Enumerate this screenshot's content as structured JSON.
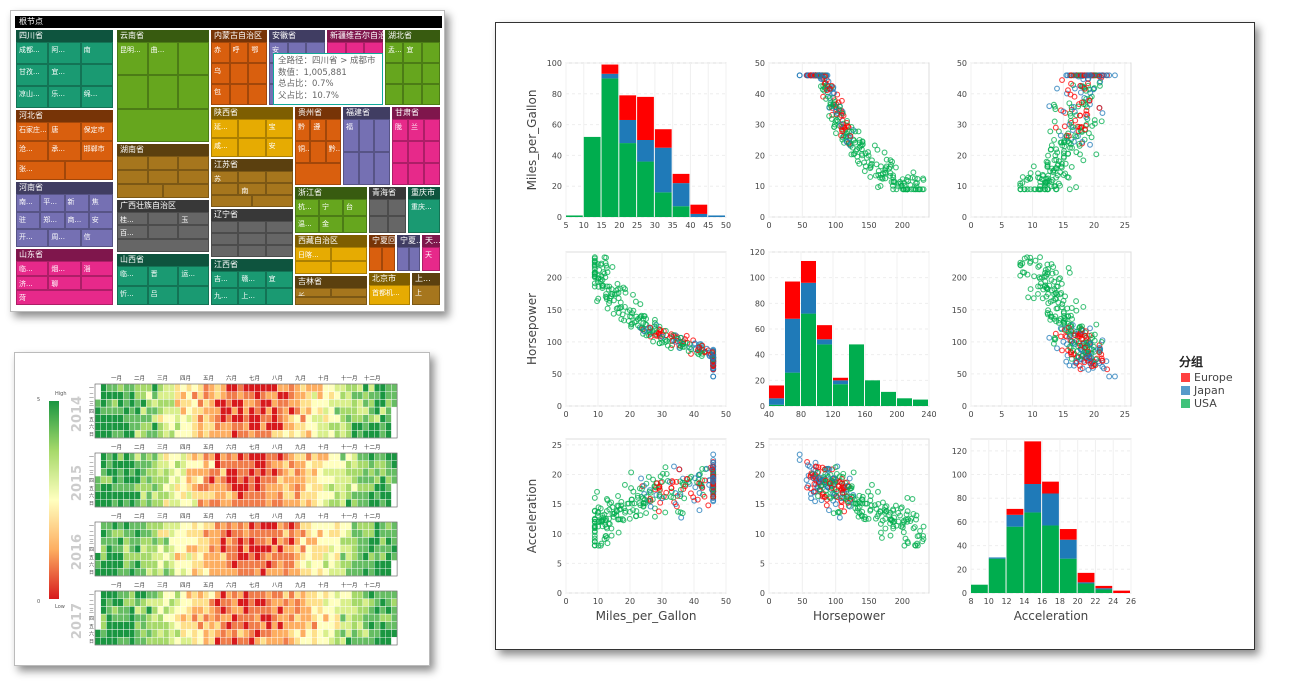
{
  "treemap": {
    "root": "根节点",
    "tooltip": {
      "path": "全路径：四川省 > 成都市",
      "value": "数值：1,005,881",
      "total_ratio": "总占比：0.7%",
      "parent_ratio": "父占比：10.7%"
    },
    "provinces": [
      {
        "name": "四川省",
        "color": "#1a9a72",
        "cells": [
          "成都...",
          "阿...",
          "南",
          "甘孜...",
          "宜...",
          "",
          "凉山...",
          "乐...",
          "绵..."
        ]
      },
      {
        "name": "河北省",
        "color": "#d95f0e",
        "cells": [
          "石家庄...",
          "唐",
          "保定市",
          "沧...",
          "承...",
          "邯郸市",
          "张...",
          ""
        ]
      },
      {
        "name": "河南省",
        "color": "#7570b3",
        "cells": [
          "南...",
          "平...",
          "新",
          "焦",
          "驻",
          "郑...",
          "商...",
          "安",
          "开...",
          "周...",
          "信"
        ]
      },
      {
        "name": "山东省",
        "color": "#e7298a",
        "cells": [
          "临...",
          "烟...",
          "淄",
          "济...",
          "聊",
          "",
          "菏"
        ]
      },
      {
        "name": "云南省",
        "color": "#66a61e",
        "cells": [
          "昆明...",
          "曲...",
          "",
          "",
          "",
          "",
          ""
        ]
      },
      {
        "name": "湖南省",
        "color": "#a6761d",
        "cells": [
          "",
          "",
          "",
          "",
          "",
          "",
          "",
          ""
        ]
      },
      {
        "name": "广西壮族自治区",
        "color": "#666666",
        "cells": [
          "桂...",
          "",
          "玉",
          "百...",
          "",
          "",
          ""
        ]
      },
      {
        "name": "山西省",
        "color": "#1a9a72",
        "cells": [
          "临...",
          "晋",
          "运...",
          "忻...",
          "吕",
          ""
        ]
      },
      {
        "name": "内蒙古自治区",
        "color": "#d95f0e",
        "cells": [
          "赤",
          "呼",
          "鄂",
          "乌",
          "",
          "",
          "包",
          "",
          ""
        ]
      },
      {
        "name": "陕西省",
        "color": "#e6ab02",
        "cells": [
          "延...",
          "",
          "宝",
          "咸...",
          "",
          "安"
        ]
      },
      {
        "name": "江苏省",
        "color": "#a6761d",
        "cells": [
          "苏",
          "",
          "",
          "",
          "南",
          "",
          "",
          ""
        ]
      },
      {
        "name": "辽宁省",
        "color": "#666666",
        "cells": [
          "",
          "",
          "",
          "",
          "",
          "",
          "",
          "",
          ""
        ]
      },
      {
        "name": "江西省",
        "color": "#1a9a72",
        "cells": [
          "吉...",
          "赣...",
          "宜",
          "九...",
          "上...",
          ""
        ]
      },
      {
        "name": "安徽省",
        "color": "#7570b3",
        "cells": [
          "安",
          "",
          "",
          "",
          "",
          "",
          "",
          "",
          ""
        ]
      },
      {
        "name": "新疆维吾尔自治区",
        "color": "#e7298a",
        "cells": [
          "",
          "",
          "",
          "",
          "",
          "",
          "",
          "",
          ""
        ]
      },
      {
        "name": "湖北省",
        "color": "#66a61e",
        "cells": [
          "孟...",
          "宜",
          "",
          "",
          "",
          "",
          "",
          "",
          ""
        ]
      },
      {
        "name": "贵州省",
        "color": "#d95f0e",
        "cells": [
          "黔",
          "遵",
          "",
          "铜...",
          "",
          "黔...",
          ""
        ]
      },
      {
        "name": "福建省",
        "color": "#7570b3",
        "cells": [
          "福",
          "",
          "",
          "",
          "",
          ""
        ]
      },
      {
        "name": "甘肃省",
        "color": "#e7298a",
        "cells": [
          "陇",
          "兰",
          "",
          "",
          "",
          "",
          "",
          "",
          ""
        ]
      },
      {
        "name": "浙江省",
        "color": "#66a61e",
        "cells": [
          "杭...",
          "宁",
          "台",
          "温...",
          "金",
          ""
        ]
      },
      {
        "name": "青海省",
        "color": "#666666",
        "cells": [
          "",
          "",
          "",
          ""
        ]
      },
      {
        "name": "重庆市",
        "color": "#1a9a72",
        "cells": [
          "重庆..."
        ]
      },
      {
        "name": "西藏自治区",
        "color": "#e6ab02",
        "cells": [
          "日喀...",
          "",
          "",
          ""
        ]
      },
      {
        "name": "吉林省",
        "color": "#a6761d",
        "cells": [
          "长",
          "",
          ""
        ]
      },
      {
        "name": "宁夏回族自治区",
        "color": "#d95f0e",
        "cells": [
          "",
          ""
        ]
      },
      {
        "name": "宁夏...",
        "color": "#7570b3",
        "cells": [
          "",
          ""
        ]
      },
      {
        "name": "天...",
        "color": "#e7298a",
        "cells": [
          "天"
        ]
      },
      {
        "name": "北京市",
        "color": "#e6ab02",
        "cells": [
          "首都机..."
        ]
      },
      {
        "name": "上...",
        "color": "#a6761d",
        "cells": [
          "上"
        ]
      }
    ]
  },
  "calendar": {
    "years": [
      "2014",
      "2015",
      "2016",
      "2017"
    ],
    "months": [
      "一月",
      "二月",
      "三月",
      "四月",
      "五月",
      "六月",
      "七月",
      "八月",
      "九月",
      "十月",
      "十一月",
      "十二月"
    ],
    "weekdays": [
      "一",
      "二",
      "三",
      "四",
      "五",
      "六",
      "日"
    ],
    "legend": {
      "high": "High",
      "low": "Low",
      "max": "5",
      "min": "0"
    },
    "colors": [
      "#d7191c",
      "#fdae61",
      "#ffffbf",
      "#a6d96a",
      "#1a9641"
    ]
  },
  "chart_data": {
    "type": "scatter-matrix",
    "variables": [
      "Miles_per_Gallon",
      "Horsepower",
      "Acceleration"
    ],
    "legend": {
      "title": "分组",
      "placement": "right",
      "entries": [
        {
          "name": "Europe",
          "color": "#ff0000"
        },
        {
          "name": "Japan",
          "color": "#1f7ab8"
        },
        {
          "name": "USA",
          "color": "#00ad4e"
        }
      ]
    },
    "histograms": [
      {
        "variable": "Miles_per_Gallon",
        "bins": [
          5,
          10,
          15,
          20,
          25,
          30,
          35,
          40,
          45,
          50
        ],
        "ylim": [
          0,
          100
        ],
        "yticks": [
          0,
          20,
          40,
          60,
          80,
          100
        ],
        "series": [
          {
            "name": "USA",
            "values": [
              1,
              52,
              90,
              48,
              36,
              16,
              7,
              0,
              0
            ]
          },
          {
            "name": "Japan",
            "values": [
              0,
              0,
              3,
              15,
              14,
              29,
              15,
              2,
              1
            ]
          },
          {
            "name": "Europe",
            "values": [
              0,
              0,
              6,
              16,
              28,
              12,
              6,
              6,
              0
            ]
          }
        ]
      },
      {
        "variable": "Horsepower",
        "bins": [
          40,
          60,
          80,
          100,
          120,
          140,
          160,
          180,
          200,
          220,
          240
        ],
        "xticks": [
          40,
          80,
          120,
          160,
          200,
          240
        ],
        "ylim": [
          0,
          120
        ],
        "yticks": [
          0,
          20,
          40,
          60,
          80,
          100,
          120
        ],
        "series": [
          {
            "name": "USA",
            "values": [
              1,
              26,
              72,
              48,
              17,
              48,
              20,
              11,
              6,
              5
            ]
          },
          {
            "name": "Japan",
            "values": [
              5,
              42,
              24,
              4,
              3,
              0,
              0,
              0,
              0,
              0
            ]
          },
          {
            "name": "Europe",
            "values": [
              10,
              29,
              17,
              11,
              2,
              0,
              0,
              0,
              0,
              0
            ]
          }
        ]
      },
      {
        "variable": "Acceleration",
        "bins": [
          8,
          10,
          12,
          14,
          16,
          18,
          20,
          22,
          24,
          26
        ],
        "ylim": [
          0,
          130
        ],
        "yticks": [
          0,
          20,
          40,
          60,
          80,
          100,
          120
        ],
        "series": [
          {
            "name": "USA",
            "values": [
              7,
              29,
              56,
              68,
              57,
              29,
              8,
              3,
              0
            ]
          },
          {
            "name": "Japan",
            "values": [
              0,
              1,
              10,
              24,
              27,
              16,
              1,
              1,
              0
            ]
          },
          {
            "name": "Europe",
            "values": [
              0,
              0,
              5,
              36,
              10,
              9,
              8,
              2,
              2
            ]
          }
        ]
      }
    ],
    "axes": {
      "Miles_per_Gallon": {
        "range": [
          0,
          50
        ],
        "ticks": [
          0,
          10,
          20,
          30,
          40,
          50
        ]
      },
      "Horsepower": {
        "range": [
          0,
          240
        ],
        "ticks": [
          0,
          50,
          100,
          150,
          200
        ],
        "yticks": [
          0,
          50,
          100,
          150,
          200
        ]
      },
      "Acceleration": {
        "range": [
          0,
          26
        ],
        "ticks": [
          0,
          5,
          10,
          15,
          20,
          25
        ]
      }
    },
    "scatter_y_axes": {
      "Miles_per_Gallon": {
        "range": [
          0,
          50
        ],
        "ticks": [
          0,
          10,
          20,
          30,
          40,
          50
        ]
      },
      "Horsepower": {
        "range": [
          0,
          240
        ],
        "ticks": [
          0,
          50,
          100,
          150,
          200
        ]
      },
      "Acceleration": {
        "range": [
          0,
          26
        ],
        "ticks": [
          0,
          5,
          10,
          15,
          20,
          25
        ]
      }
    }
  }
}
